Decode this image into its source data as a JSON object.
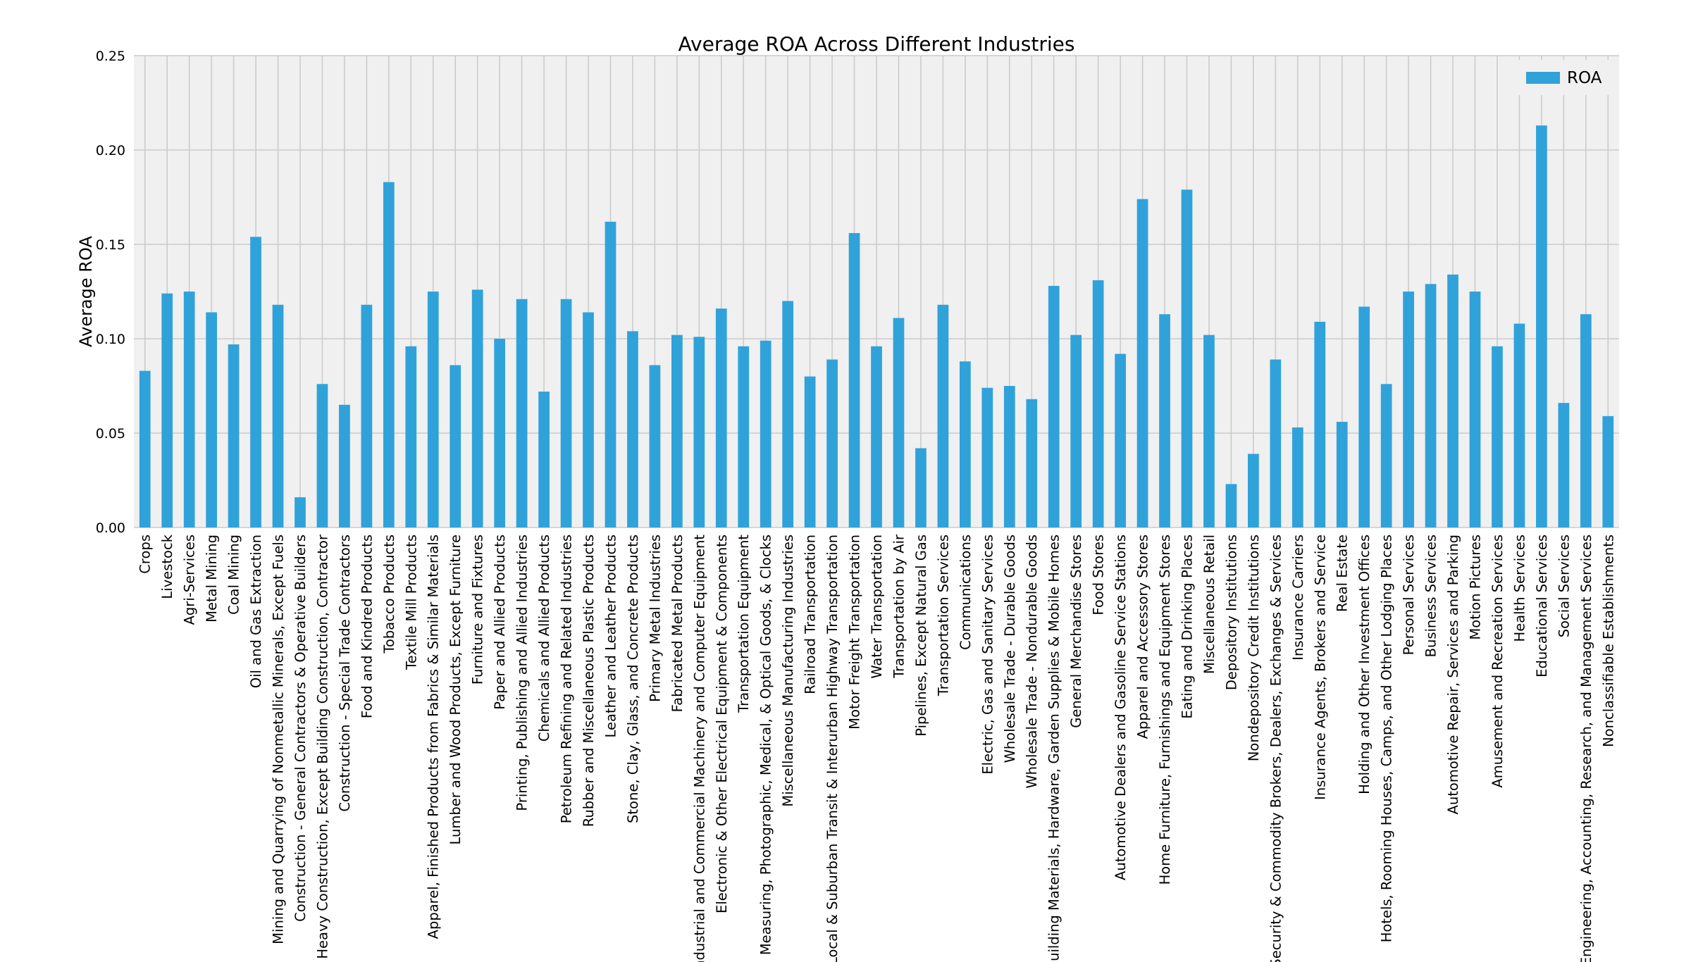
{
  "chart_data": {
    "type": "bar",
    "title": "Average ROA Across Different Industries",
    "xlabel": "",
    "ylabel": "Average ROA",
    "ylim": [
      0,
      0.25
    ],
    "yticks": [
      "0.00",
      "0.05",
      "0.10",
      "0.15",
      "0.20",
      "0.25"
    ],
    "grid": true,
    "legend_position": "top-right",
    "colors": {
      "bar": "#30a2da",
      "plot_bg": "#f0f0f0",
      "grid": "#cbcbcb"
    },
    "series": [
      {
        "name": "ROA",
        "values": [
          0.083,
          0.124,
          0.125,
          0.114,
          0.097,
          0.154,
          0.118,
          0.016,
          0.076,
          0.065,
          0.118,
          0.183,
          0.096,
          0.125,
          0.086,
          0.126,
          0.1,
          0.121,
          0.072,
          0.121,
          0.114,
          0.162,
          0.104,
          0.086,
          0.102,
          0.101,
          0.116,
          0.096,
          0.099,
          0.12,
          0.08,
          0.089,
          0.156,
          0.096,
          0.111,
          0.042,
          0.118,
          0.088,
          0.074,
          0.075,
          0.068,
          0.128,
          0.102,
          0.131,
          0.092,
          0.174,
          0.113,
          0.179,
          0.102,
          0.023,
          0.039,
          0.089,
          0.053,
          0.109,
          0.056,
          0.117,
          0.076,
          0.125,
          0.129,
          0.134,
          0.125,
          0.096,
          0.108,
          0.213,
          0.066,
          0.113,
          0.059
        ]
      }
    ],
    "categories": [
      "Crops",
      "Livestock",
      "Agri-Services",
      "Metal Mining",
      "Coal Mining",
      "Oil and Gas Extraction",
      "Mining and Quarrying of Nonmetallic Minerals, Except Fuels",
      "Construction - General Contractors & Operative Builders",
      "Heavy Construction, Except Building Construction, Contractor",
      "Construction - Special Trade Contractors",
      "Food and Kindred Products",
      "Tobacco Products",
      "Textile Mill Products",
      "Apparel, Finished Products from Fabrics & Similar Materials",
      "Lumber and Wood Products, Except Furniture",
      "Furniture and Fixtures",
      "Paper and Allied Products",
      "Printing, Publishing and Allied Industries",
      "Chemicals and Allied Products",
      "Petroleum Refining and Related Industries",
      "Rubber and Miscellaneous Plastic Products",
      "Leather and Leather Products",
      "Stone, Clay, Glass, and Concrete Products",
      "Primary Metal Industries",
      "Fabricated Metal Products",
      "Industrial and Commercial Machinery and Computer Equipment",
      "Electronic & Other Electrical Equipment & Components",
      "Transportation Equipment",
      "Measuring, Photographic, Medical, & Optical Goods, & Clocks",
      "Miscellaneous Manufacturing Industries",
      "Railroad Transportation",
      "Local & Suburban Transit & Interurban Highway Transportation",
      "Motor Freight Transportation",
      "Water Transportation",
      "Transportation by Air",
      "Pipelines, Except Natural Gas",
      "Transportation Services",
      "Communications",
      "Electric, Gas and Sanitary Services",
      "Wholesale Trade - Durable Goods",
      "Wholesale Trade - Nondurable Goods",
      "Building Materials, Hardware, Garden Supplies & Mobile Homes",
      "General Merchandise Stores",
      "Food Stores",
      "Automotive Dealers and Gasoline Service Stations",
      "Apparel and Accessory Stores",
      "Home Furniture, Furnishings and Equipment Stores",
      "Eating and Drinking Places",
      "Miscellaneous Retail",
      "Depository Institutions",
      "Nondepository Credit Institutions",
      "Security & Commodity Brokers, Dealers, Exchanges & Services",
      "Insurance Carriers",
      "Insurance Agents, Brokers and Service",
      "Real Estate",
      "Holding and Other Investment Offices",
      "Hotels, Rooming Houses, Camps, and Other Lodging Places",
      "Personal Services",
      "Business Services",
      "Automotive Repair, Services and Parking",
      "Motion Pictures",
      "Amusement and Recreation Services",
      "Health Services",
      "Educational Services",
      "Social Services",
      "Engineering, Accounting, Research, and Management Services",
      "Nonclassifiable Establishments"
    ]
  }
}
